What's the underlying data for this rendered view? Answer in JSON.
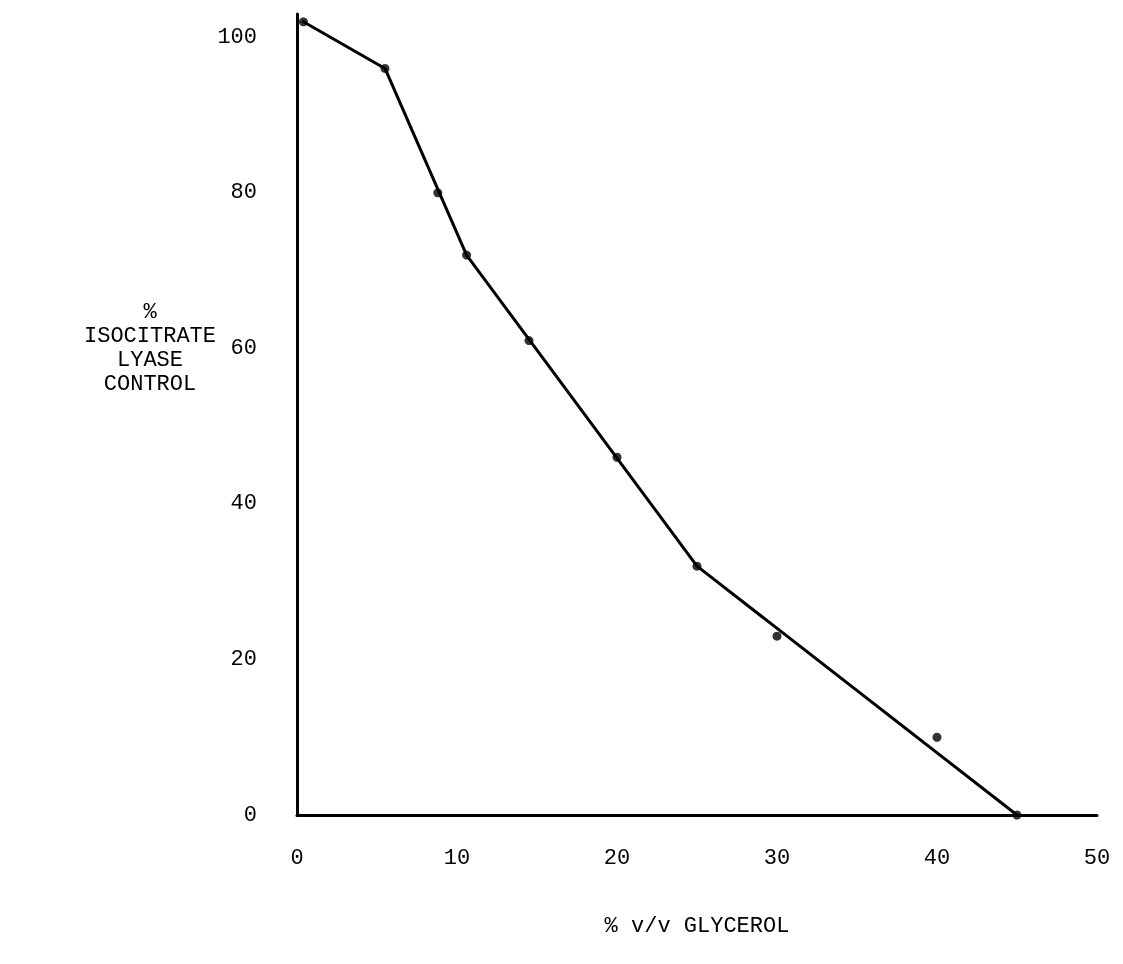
{
  "chart_data": {
    "type": "scatter",
    "xlabel": "% v/v GLYCEROL",
    "ylabel": "%\nISOCITRATE\nLYASE\nCONTROL",
    "xlim": [
      0,
      50
    ],
    "ylim": [
      0,
      103
    ],
    "xticks": [
      0,
      10,
      20,
      30,
      40,
      50
    ],
    "yticks": [
      0,
      20,
      40,
      60,
      80,
      100
    ],
    "grid": false,
    "marker": "circle",
    "series": [
      {
        "type": "scatter",
        "color": "#000000",
        "x": [
          0.4,
          5.5,
          8.8,
          10.6,
          14.5,
          20,
          25,
          30,
          40,
          45
        ],
        "values": [
          102,
          96,
          80,
          72,
          61,
          46,
          32,
          23,
          10,
          0
        ]
      },
      {
        "type": "line",
        "color": "#000000",
        "marker": "none",
        "line_style": "solid",
        "x": [
          0.4,
          5.5,
          10.6,
          25,
          45
        ],
        "values": [
          102,
          96,
          72,
          32,
          0
        ]
      }
    ]
  }
}
